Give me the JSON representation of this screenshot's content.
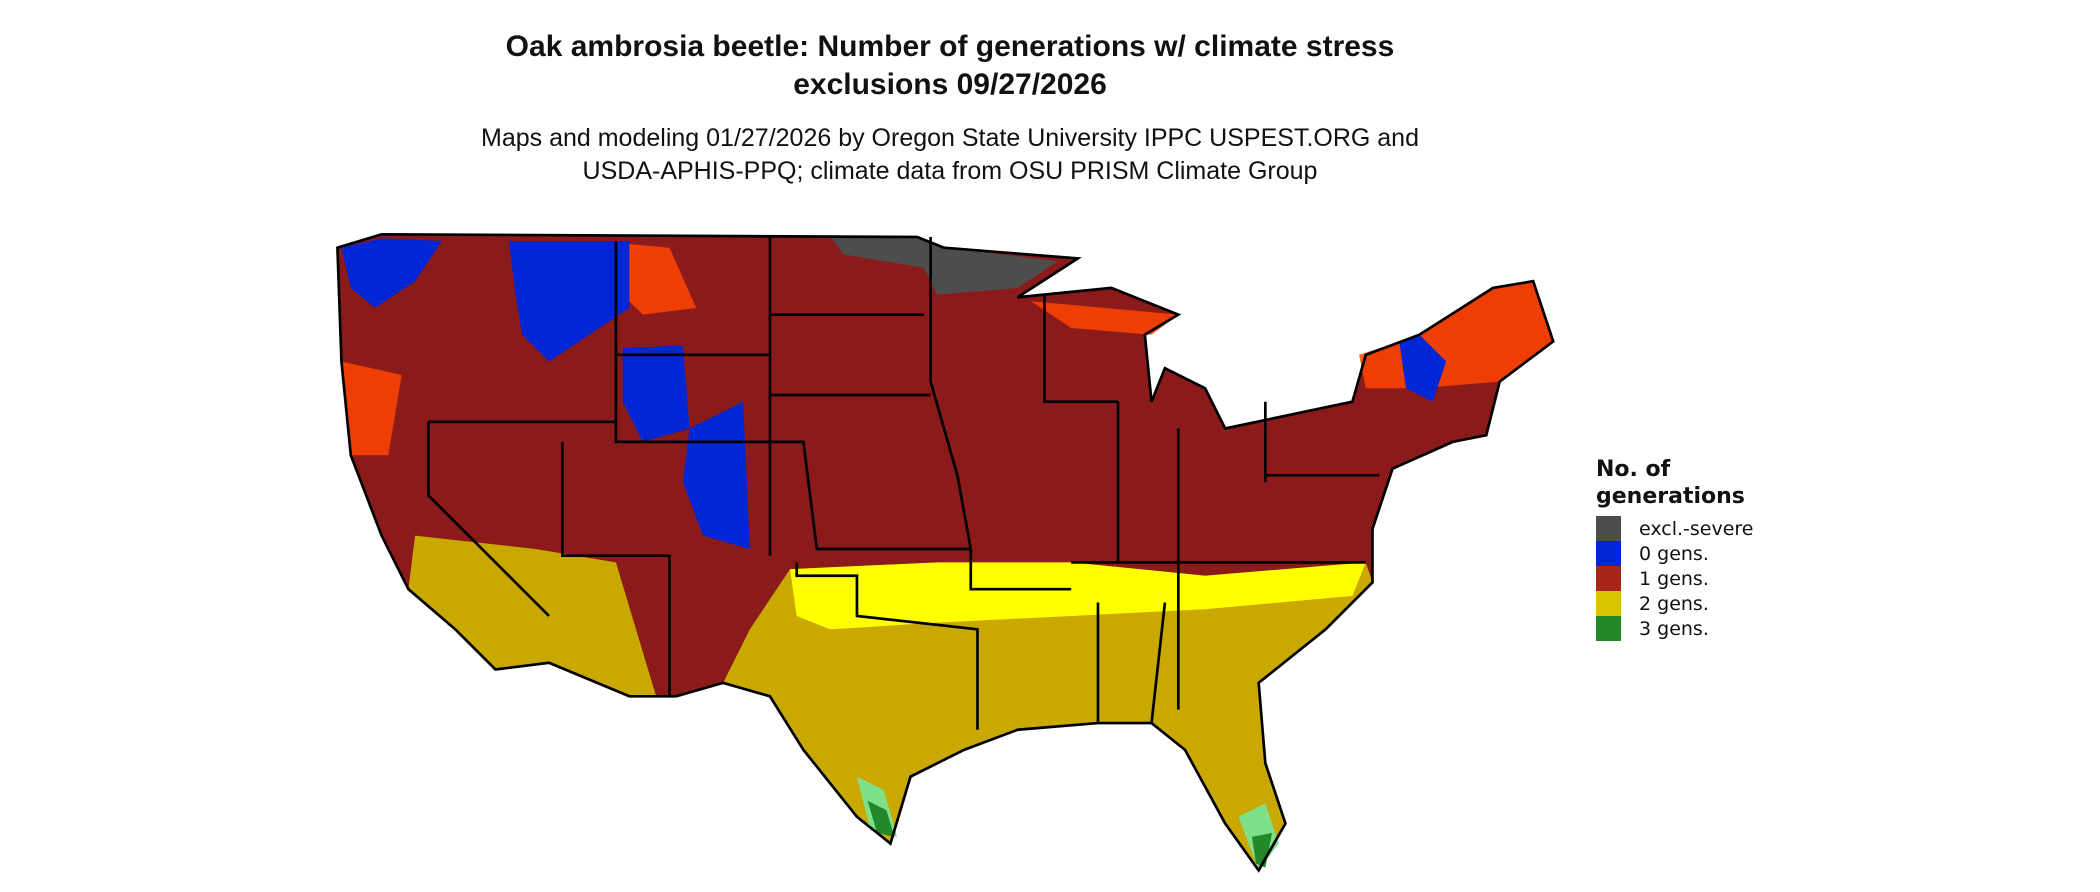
{
  "title_line1": "Oak ambrosia beetle: Number of generations w/ climate stress",
  "title_line2": "exclusions 09/27/2026",
  "subtitle_line1": "Maps and modeling 01/27/2026 by Oregon State University IPPC USPEST.ORG and",
  "subtitle_line2": "USDA-APHIS-PPQ; climate data from OSU PRISM Climate Group",
  "legend": {
    "title_line1": "No. of",
    "title_line2": "generations",
    "items": [
      {
        "label": "excl.-severe",
        "color": "#4d4d4d"
      },
      {
        "label": "0 gens.",
        "color": "#0026d6"
      },
      {
        "label": "1 gens.",
        "color": "#a8251a"
      },
      {
        "label": "2 gens.",
        "color": "#d9c200"
      },
      {
        "label": "3 gens.",
        "color": "#22882a"
      }
    ]
  },
  "map_colors": {
    "one_gen_dark": "#8b1a1a",
    "one_gen_light": "#ff4500",
    "two_gen": "#c9a800",
    "two_gen_light": "#ffff00",
    "three_gen_light": "#7fe08a"
  }
}
